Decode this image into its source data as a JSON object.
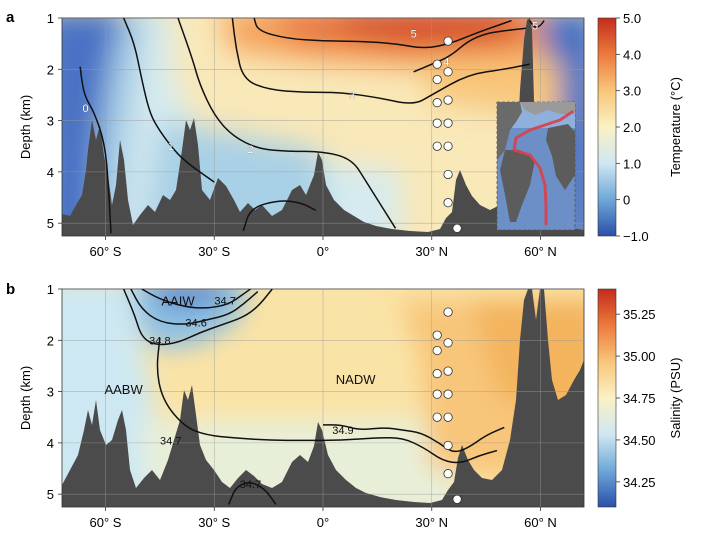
{
  "chart_data": [
    {
      "type": "heatmap",
      "panel_label": "a",
      "xlabel": "",
      "ylabel": "Depth (km)",
      "xlim": [
        -72,
        72
      ],
      "ylim": [
        5.25,
        1.0
      ],
      "x_ticks": [
        {
          "value": -60,
          "label": "60° S"
        },
        {
          "value": -30,
          "label": "30° S"
        },
        {
          "value": 0,
          "label": "0°"
        },
        {
          "value": 30,
          "label": "30° N"
        },
        {
          "value": 60,
          "label": "60° N"
        }
      ],
      "y_ticks": [
        {
          "value": 1,
          "label": "1"
        },
        {
          "value": 2,
          "label": "2"
        },
        {
          "value": 3,
          "label": "3"
        },
        {
          "value": 4,
          "label": "4"
        },
        {
          "value": 5,
          "label": "5"
        }
      ],
      "grid": true,
      "colorbar": {
        "label": "Temperature (°C)",
        "range": [
          -1.0,
          5.0
        ],
        "ticks": [
          "5.0",
          "4.0",
          "3.0",
          "2.0",
          "1.0",
          "0",
          "−1.0"
        ],
        "colors": [
          "#2b4fa8",
          "#6ea7d8",
          "#cfe7f2",
          "#fbf1c4",
          "#f8c67a",
          "#ec7a3c",
          "#c42c1b"
        ]
      },
      "contours": [
        {
          "level": "0",
          "label": "0",
          "points": [
            [
              -67,
              1.95
            ],
            [
              -66,
              2.5
            ],
            [
              -63,
              2.85
            ],
            [
              -60,
              3.5
            ],
            [
              -59,
              4.5
            ],
            [
              -58.5,
              5.2
            ]
          ]
        },
        {
          "level": "1",
          "label": "1",
          "points": [
            [
              -55,
              1.0
            ],
            [
              -52,
              1.5
            ],
            [
              -50,
              2.2
            ],
            [
              -48,
              2.8
            ],
            [
              -46,
              3.1
            ],
            [
              -42,
              3.5
            ],
            [
              -38,
              3.8
            ],
            [
              -30,
              4.2
            ]
          ]
        },
        {
          "level": "2",
          "label": "2",
          "points": [
            [
              -40,
              1.0
            ],
            [
              -36,
              1.8
            ],
            [
              -34,
              2.3
            ],
            [
              -30,
              2.9
            ],
            [
              -25,
              3.3
            ],
            [
              -18,
              3.55
            ],
            [
              -10,
              3.6
            ],
            [
              0,
              3.6
            ],
            [
              8,
              3.75
            ],
            [
              12,
              4.2
            ],
            [
              20,
              5.1
            ]
          ]
        },
        {
          "level": "2b",
          "label": "",
          "points": [
            [
              -22,
              5.15
            ],
            [
              -20,
              4.7
            ],
            [
              -12,
              4.55
            ],
            [
              -6,
              4.6
            ],
            [
              -2,
              4.75
            ]
          ]
        },
        {
          "level": "3",
          "label": "3",
          "points": [
            [
              -25,
              1.0
            ],
            [
              -24,
              1.6
            ],
            [
              -22,
              2.2
            ],
            [
              -15,
              2.4
            ],
            [
              -5,
              2.45
            ],
            [
              5,
              2.45
            ],
            [
              15,
              2.55
            ],
            [
              25,
              2.7
            ],
            [
              30,
              2.5
            ],
            [
              40,
              2.1
            ],
            [
              50,
              2.0
            ],
            [
              57,
              1.9
            ]
          ]
        },
        {
          "level": "4",
          "label": "4",
          "points": [
            [
              25,
              2.05
            ],
            [
              30,
              1.9
            ],
            [
              35,
              1.75
            ],
            [
              40,
              1.45
            ],
            [
              45,
              1.3
            ],
            [
              50,
              1.25
            ],
            [
              56,
              1.2
            ]
          ]
        },
        {
          "level": "5",
          "label": "5",
          "points": [
            [
              -19,
              1.0
            ],
            [
              -18,
              1.25
            ],
            [
              -10,
              1.4
            ],
            [
              0,
              1.45
            ],
            [
              10,
              1.45
            ],
            [
              20,
              1.5
            ],
            [
              28,
              1.6
            ],
            [
              35,
              1.5
            ],
            [
              42,
              1.3
            ],
            [
              48,
              1.15
            ],
            [
              52,
              1.05
            ]
          ]
        },
        {
          "level": "5b",
          "label": "5",
          "points": [
            [
              57,
              1.05
            ],
            [
              58.5,
              1.2
            ],
            [
              60,
              1.15
            ],
            [
              61,
              1.05
            ]
          ]
        }
      ],
      "contour_labels": [
        {
          "text": "0",
          "x": -65.5,
          "y": 2.75
        },
        {
          "text": "1",
          "x": -42,
          "y": 3.5
        },
        {
          "text": "2",
          "x": -20,
          "y": 3.55
        },
        {
          "text": "3",
          "x": 8,
          "y": 2.5
        },
        {
          "text": "4",
          "x": 34,
          "y": 1.85
        },
        {
          "text": "5",
          "x": 25,
          "y": 1.3
        },
        {
          "text": "5",
          "x": 58.5,
          "y": 1.15
        }
      ],
      "stations": [
        {
          "lat": 31.5,
          "depth": 1.9
        },
        {
          "lat": 31.5,
          "depth": 2.2
        },
        {
          "lat": 31.5,
          "depth": 2.65
        },
        {
          "lat": 31.5,
          "depth": 3.05
        },
        {
          "lat": 31.5,
          "depth": 3.5
        },
        {
          "lat": 34.5,
          "depth": 1.45
        },
        {
          "lat": 34.5,
          "depth": 2.05
        },
        {
          "lat": 34.5,
          "depth": 2.6
        },
        {
          "lat": 34.5,
          "depth": 3.05
        },
        {
          "lat": 34.5,
          "depth": 3.5
        },
        {
          "lat": 34.5,
          "depth": 4.05
        },
        {
          "lat": 34.5,
          "depth": 4.6
        },
        {
          "lat": 37.0,
          "depth": 5.1
        }
      ],
      "inset": "Atlantic Ocean map with section track"
    },
    {
      "type": "heatmap",
      "panel_label": "b",
      "xlabel": "",
      "ylabel": "Depth (km)",
      "xlim": [
        -72,
        72
      ],
      "ylim": [
        5.25,
        1.0
      ],
      "x_ticks": [
        {
          "value": -60,
          "label": "60° S"
        },
        {
          "value": -30,
          "label": "30° S"
        },
        {
          "value": 0,
          "label": "0°"
        },
        {
          "value": 30,
          "label": "30° N"
        },
        {
          "value": 60,
          "label": "60° N"
        }
      ],
      "y_ticks": [
        {
          "value": 1,
          "label": "1"
        },
        {
          "value": 2,
          "label": "2"
        },
        {
          "value": 3,
          "label": "3"
        },
        {
          "value": 4,
          "label": "4"
        },
        {
          "value": 5,
          "label": "5"
        }
      ],
      "grid": true,
      "colorbar": {
        "label": "Salinity (PSU)",
        "range": [
          34.1,
          35.4
        ],
        "ticks": [
          "35.25",
          "35.00",
          "34.75",
          "34.50",
          "34.25"
        ],
        "colors": [
          "#2b4fa8",
          "#6ea7d8",
          "#cfe7f2",
          "#fbf1c4",
          "#f8c67a",
          "#ec7a3c",
          "#c42c1b"
        ]
      },
      "water_masses": [
        {
          "text": "AAIW",
          "x": -40,
          "y": 1.22
        },
        {
          "text": "AABW",
          "x": -55,
          "y": 2.95
        },
        {
          "text": "NADW",
          "x": 9,
          "y": 2.75
        }
      ],
      "contours": [
        {
          "level": "34.7a",
          "label": "34.7",
          "points": [
            [
              -50,
              1.0
            ],
            [
              -45,
              1.2
            ],
            [
              -38,
              1.35
            ],
            [
              -32,
              1.38
            ],
            [
              -26,
              1.3
            ],
            [
              -22,
              1.1
            ],
            [
              -20,
              1.0
            ]
          ]
        },
        {
          "level": "34.6",
          "label": "34.6",
          "points": [
            [
              -53,
              1.0
            ],
            [
              -50,
              1.4
            ],
            [
              -45,
              1.65
            ],
            [
              -38,
              1.7
            ],
            [
              -32,
              1.6
            ],
            [
              -26,
              1.5
            ],
            [
              -22,
              1.3
            ],
            [
              -18,
              1.05
            ]
          ]
        },
        {
          "level": "34.8",
          "label": "34.8",
          "points": [
            [
              -55,
              1.0
            ],
            [
              -52,
              1.5
            ],
            [
              -50,
              1.95
            ],
            [
              -46,
              2.1
            ],
            [
              -40,
              2.05
            ],
            [
              -34,
              1.85
            ],
            [
              -28,
              1.7
            ],
            [
              -22,
              1.55
            ],
            [
              -18,
              1.35
            ],
            [
              -14,
              1.0
            ]
          ]
        },
        {
          "level": "34.7b",
          "label": "34.7",
          "points": [
            [
              -45,
              1.95
            ],
            [
              -46,
              2.6
            ],
            [
              -44,
              3.2
            ],
            [
              -38,
              3.7
            ],
            [
              -32,
              3.85
            ],
            [
              -25,
              3.9
            ],
            [
              -15,
              3.95
            ],
            [
              -5,
              3.95
            ],
            [
              5,
              3.95
            ],
            [
              15,
              3.9
            ],
            [
              22,
              3.9
            ],
            [
              28,
              4.1
            ],
            [
              33,
              4.35
            ],
            [
              38,
              4.4
            ],
            [
              43,
              4.25
            ],
            [
              48,
              4.15
            ]
          ]
        },
        {
          "level": "34.9",
          "label": "34.9",
          "points": [
            [
              0,
              3.65
            ],
            [
              5,
              3.65
            ],
            [
              10,
              3.75
            ],
            [
              17,
              3.7
            ],
            [
              22,
              3.75
            ],
            [
              27,
              3.8
            ],
            [
              32,
              4.0
            ],
            [
              36,
              4.2
            ],
            [
              40,
              4.1
            ],
            [
              45,
              3.85
            ],
            [
              50,
              3.7
            ]
          ]
        },
        {
          "level": "34.7c",
          "label": "34.7",
          "points": [
            [
              -26,
              5.2
            ],
            [
              -24,
              4.85
            ],
            [
              -20,
              4.75
            ],
            [
              -16,
              4.9
            ],
            [
              -13,
              5.2
            ]
          ]
        }
      ],
      "contour_labels": [
        {
          "text": "34.7",
          "x": -27,
          "y": 1.22
        },
        {
          "text": "34.6",
          "x": -35,
          "y": 1.65
        },
        {
          "text": "34.8",
          "x": -45,
          "y": 2.0
        },
        {
          "text": "34.7",
          "x": -42,
          "y": 3.95
        },
        {
          "text": "34.9",
          "x": 5.5,
          "y": 3.75
        },
        {
          "text": "34.7",
          "x": -20,
          "y": 4.8
        }
      ],
      "stations": [
        {
          "lat": 31.5,
          "depth": 1.9
        },
        {
          "lat": 31.5,
          "depth": 2.2
        },
        {
          "lat": 31.5,
          "depth": 2.65
        },
        {
          "lat": 31.5,
          "depth": 3.05
        },
        {
          "lat": 31.5,
          "depth": 3.5
        },
        {
          "lat": 34.5,
          "depth": 1.45
        },
        {
          "lat": 34.5,
          "depth": 2.05
        },
        {
          "lat": 34.5,
          "depth": 2.6
        },
        {
          "lat": 34.5,
          "depth": 3.05
        },
        {
          "lat": 34.5,
          "depth": 3.5
        },
        {
          "lat": 34.5,
          "depth": 4.05
        },
        {
          "lat": 34.5,
          "depth": 4.6
        },
        {
          "lat": 37.0,
          "depth": 5.1
        }
      ]
    }
  ]
}
